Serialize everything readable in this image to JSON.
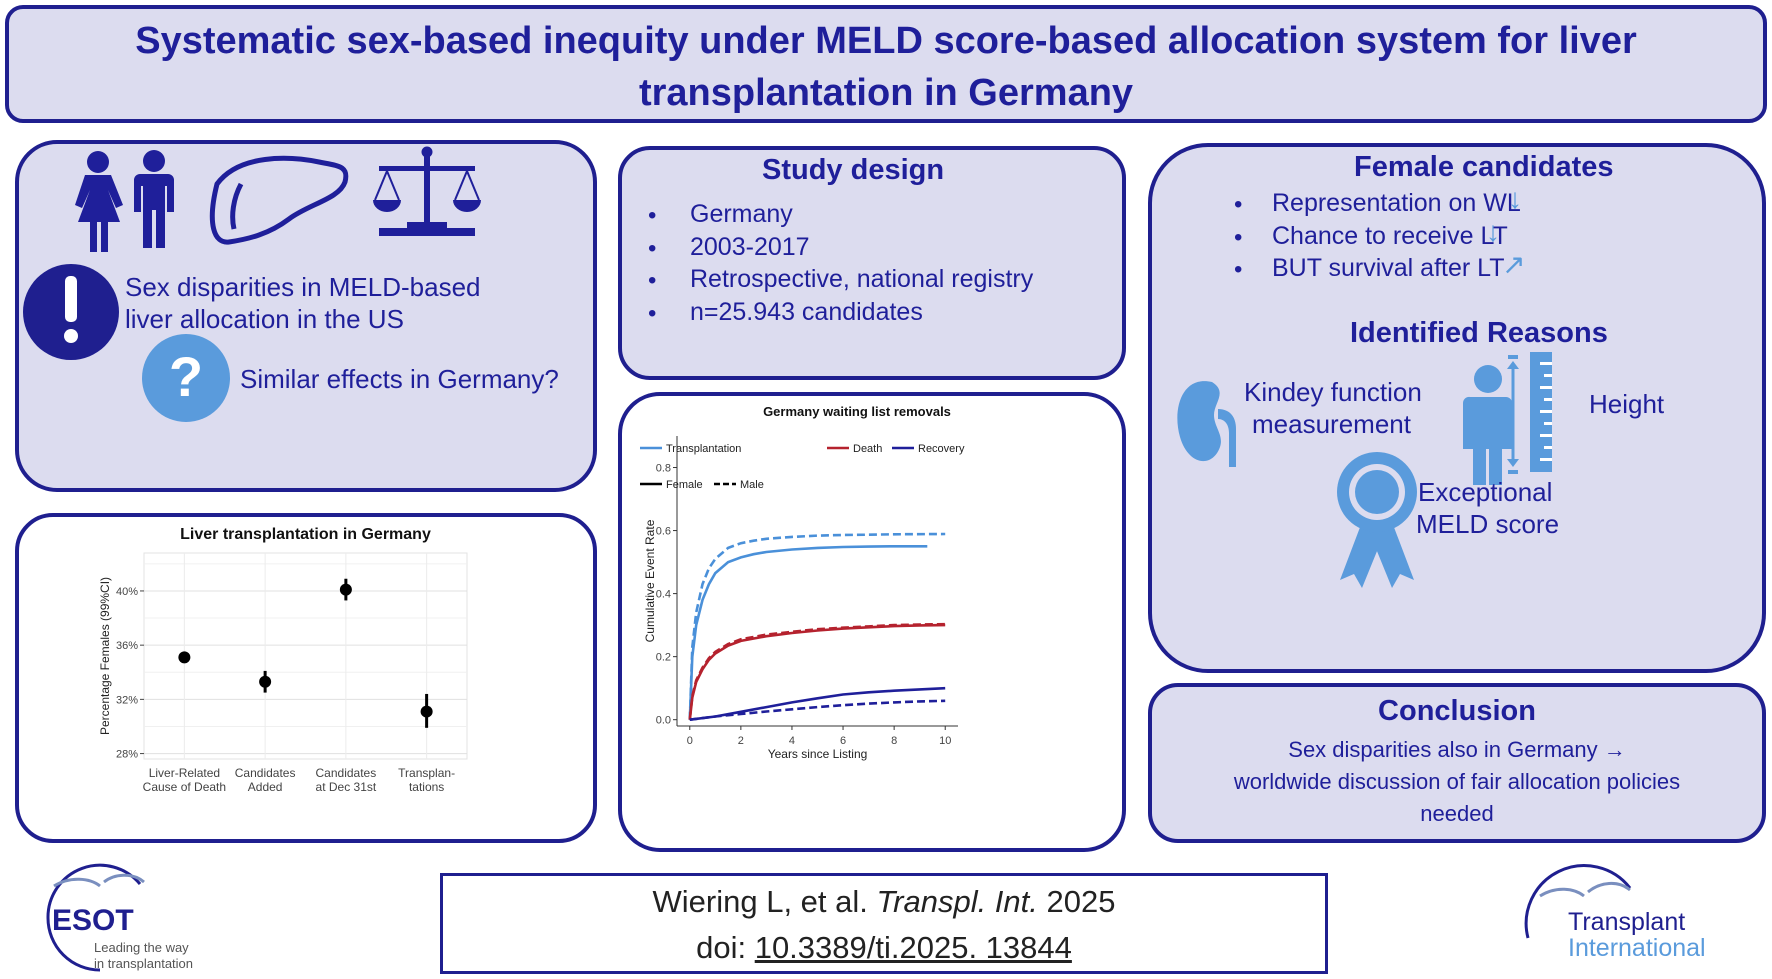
{
  "title": "Systematic sex-based inequity under MELD score-based allocation system for liver transplantation in Germany",
  "title_line1": "Systematic sex-based inequity under MELD score-based allocation system for liver",
  "title_line2": "transplantation in Germany",
  "intro": {
    "line1": "Sex disparities in MELD-based",
    "line2": "liver allocation in the US",
    "question": "Similar effects in Germany?",
    "icons": [
      "woman-man-icon",
      "liver-icon",
      "scales-icon",
      "exclamation-icon",
      "question-icon"
    ]
  },
  "study_design": {
    "heading": "Study design",
    "items": [
      "Germany",
      "2003-2017",
      "Retrospective, national registry",
      "n=25.943 candidates"
    ]
  },
  "female_candidates": {
    "heading": "Female candidates",
    "items": [
      {
        "text": "Representation on WL",
        "arrow": "down"
      },
      {
        "text": "Chance to receive LT",
        "arrow": "down"
      },
      {
        "text": "BUT survival after LT",
        "arrow": "right"
      }
    ],
    "reasons_heading": "Identified Reasons",
    "reason_kidney_1": "Kindey function",
    "reason_kidney_2": "measurement",
    "reason_height": "Height",
    "reason_meld_1": "Exceptional",
    "reason_meld_2": "MELD score"
  },
  "conclusion": {
    "heading": "Conclusion",
    "line1": "Sex disparities also in Germany →",
    "line2": "worldwide discussion of fair allocation policies",
    "line3": "needed"
  },
  "citation": {
    "authors": "Wiering L, et al.",
    "journal": "Transpl. Int.",
    "year": "2025",
    "doi_prefix": "doi:",
    "doi": "10.3389/ti.2025. 13844"
  },
  "logos": {
    "esot_name": "ESOT",
    "esot_tag1": "Leading the way",
    "esot_tag2": "in transplantation",
    "ti_line1": "Transplant",
    "ti_line2": "International"
  },
  "chart_data": [
    {
      "type": "scatter",
      "title": "Liver transplantation in Germany",
      "ylabel": "Percentage Females (99%CI)",
      "xlabel": "",
      "categories": [
        [
          "Liver-Related",
          "Cause of Death"
        ],
        [
          "Candidates",
          "Added"
        ],
        [
          "Candidates",
          "at Dec 31st"
        ],
        [
          "Transplan-",
          "tations"
        ]
      ],
      "values": [
        35.1,
        33.3,
        40.1,
        31.1
      ],
      "ci_low": [
        35.0,
        32.5,
        39.3,
        29.9
      ],
      "ci_high": [
        35.2,
        34.1,
        40.9,
        32.4
      ],
      "yticks": [
        "28%",
        "32%",
        "36%",
        "40%"
      ],
      "ytick_values": [
        28,
        32,
        36,
        40
      ],
      "ylim": [
        27.6,
        42.8
      ],
      "grid": true
    },
    {
      "type": "line",
      "title": "Germany waiting list removals",
      "xlabel": "Years since Listing",
      "ylabel": "Cumulative Event Rate",
      "xlim": [
        -0.5,
        10.5
      ],
      "ylim": [
        -0.02,
        0.9
      ],
      "xticks": [
        0,
        2,
        4,
        6,
        8,
        10
      ],
      "yticks": [
        0.0,
        0.2,
        0.4,
        0.6,
        0.8
      ],
      "ytick_labels": [
        "0.0",
        "0.2",
        "0.4",
        "0.6",
        "0.8"
      ],
      "legend_labels": {
        "transplantation": "Transplantation",
        "death": "Death",
        "recovery": "Recovery",
        "female": "Female",
        "male": "Male"
      },
      "colors": {
        "transplantation": "#4a90d9",
        "death": "#b5222e",
        "recovery": "#1f1f9a"
      },
      "series": [
        {
          "name": "Transplantation",
          "sex": "Female",
          "color": "#4a90d9",
          "dash": false,
          "x": [
            0,
            0.1,
            0.25,
            0.5,
            0.75,
            1,
            1.5,
            2,
            2.5,
            3,
            4,
            5,
            6,
            7,
            8,
            9.3
          ],
          "y": [
            0,
            0.2,
            0.3,
            0.38,
            0.43,
            0.465,
            0.5,
            0.515,
            0.525,
            0.532,
            0.54,
            0.545,
            0.548,
            0.549,
            0.55,
            0.55
          ]
        },
        {
          "name": "Transplantation",
          "sex": "Male",
          "color": "#4a90d9",
          "dash": true,
          "x": [
            0,
            0.1,
            0.25,
            0.5,
            0.75,
            1,
            1.5,
            2,
            2.5,
            3,
            4,
            5,
            6,
            7,
            8,
            10
          ],
          "y": [
            0,
            0.23,
            0.34,
            0.43,
            0.48,
            0.51,
            0.545,
            0.56,
            0.568,
            0.574,
            0.58,
            0.584,
            0.586,
            0.587,
            0.588,
            0.589
          ]
        },
        {
          "name": "Death",
          "sex": "Female",
          "color": "#b5222e",
          "dash": false,
          "x": [
            0,
            0.1,
            0.25,
            0.5,
            0.75,
            1,
            1.5,
            2,
            3,
            4,
            5,
            6,
            7,
            8,
            9,
            10
          ],
          "y": [
            0,
            0.07,
            0.12,
            0.16,
            0.19,
            0.21,
            0.235,
            0.25,
            0.265,
            0.275,
            0.283,
            0.289,
            0.293,
            0.297,
            0.299,
            0.3
          ]
        },
        {
          "name": "Death",
          "sex": "Male",
          "color": "#b5222e",
          "dash": true,
          "x": [
            0,
            0.1,
            0.25,
            0.5,
            0.75,
            1,
            1.5,
            2,
            3,
            4,
            5,
            6,
            7,
            8,
            9,
            10
          ],
          "y": [
            0,
            0.075,
            0.125,
            0.165,
            0.195,
            0.215,
            0.24,
            0.255,
            0.27,
            0.279,
            0.287,
            0.292,
            0.296,
            0.3,
            0.302,
            0.303
          ]
        },
        {
          "name": "Recovery",
          "sex": "Female",
          "color": "#1f1f9a",
          "dash": false,
          "x": [
            0,
            1,
            2,
            3,
            4,
            5,
            6,
            7,
            8,
            9,
            10
          ],
          "y": [
            0,
            0.01,
            0.025,
            0.04,
            0.055,
            0.068,
            0.08,
            0.087,
            0.092,
            0.096,
            0.1
          ]
        },
        {
          "name": "Recovery",
          "sex": "Male",
          "color": "#1f1f9a",
          "dash": true,
          "x": [
            0,
            1,
            2,
            3,
            4,
            5,
            6,
            7,
            8,
            9,
            10
          ],
          "y": [
            0,
            0.01,
            0.018,
            0.026,
            0.033,
            0.04,
            0.046,
            0.051,
            0.055,
            0.058,
            0.06
          ]
        }
      ],
      "grid": false
    }
  ]
}
